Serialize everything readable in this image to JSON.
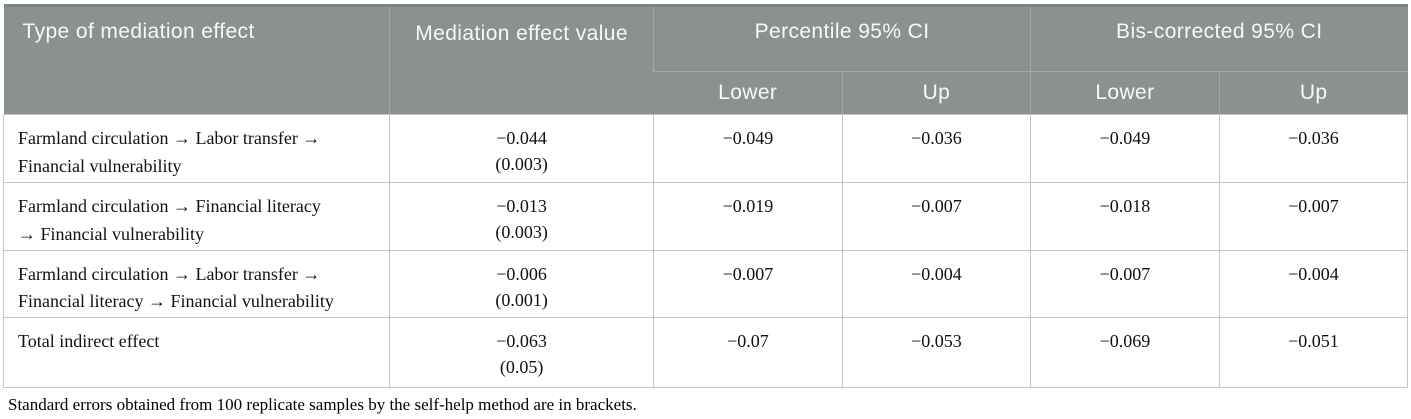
{
  "colors": {
    "header_bg": "#8b9091",
    "header_bg_dark": "#7e8384",
    "header_divider": "#a4a8a9",
    "header_text": "#f7f8f8",
    "body_border": "#c3c6c6"
  },
  "table": {
    "header": {
      "type_col": "Type of mediation effect",
      "value_col": "Mediation effect value",
      "group_percentile": "Percentile 95% CI",
      "group_bis": "Bis-corrected 95% CI",
      "sub": {
        "p_lower": "Lower",
        "p_up": "Up",
        "b_lower": "Lower",
        "b_up": "Up"
      }
    },
    "rows": [
      {
        "lines": [
          "Farmland circulation →  Labor transfer →",
          "Financial vulnerability"
        ],
        "value": "−0.044",
        "se": "(0.003)",
        "p_lower": "−0.049",
        "p_up": "−0.036",
        "b_lower": "−0.049",
        "b_up": "−0.036"
      },
      {
        "lines": [
          "Farmland circulation →  Financial literacy",
          "→  Financial vulnerability"
        ],
        "value": "−0.013",
        "se": "(0.003)",
        "p_lower": "−0.019",
        "p_up": "−0.007",
        "b_lower": "−0.018",
        "b_up": "−0.007"
      },
      {
        "lines": [
          "Farmland circulation →  Labor transfer →",
          "Financial literacy →  Financial vulnerability"
        ],
        "value": "−0.006",
        "se": "(0.001)",
        "p_lower": "−0.007",
        "p_up": "−0.004",
        "b_lower": "−0.007",
        "b_up": "−0.004"
      },
      {
        "lines": [
          "Total indirect effect"
        ],
        "value": "−0.063",
        "se": "(0.05)",
        "p_lower": "−0.07",
        "p_up": "−0.053",
        "b_lower": "−0.069",
        "b_up": "−0.051"
      }
    ],
    "footnote": "Standard errors obtained from 100 replicate samples by the self-help method are in brackets."
  }
}
